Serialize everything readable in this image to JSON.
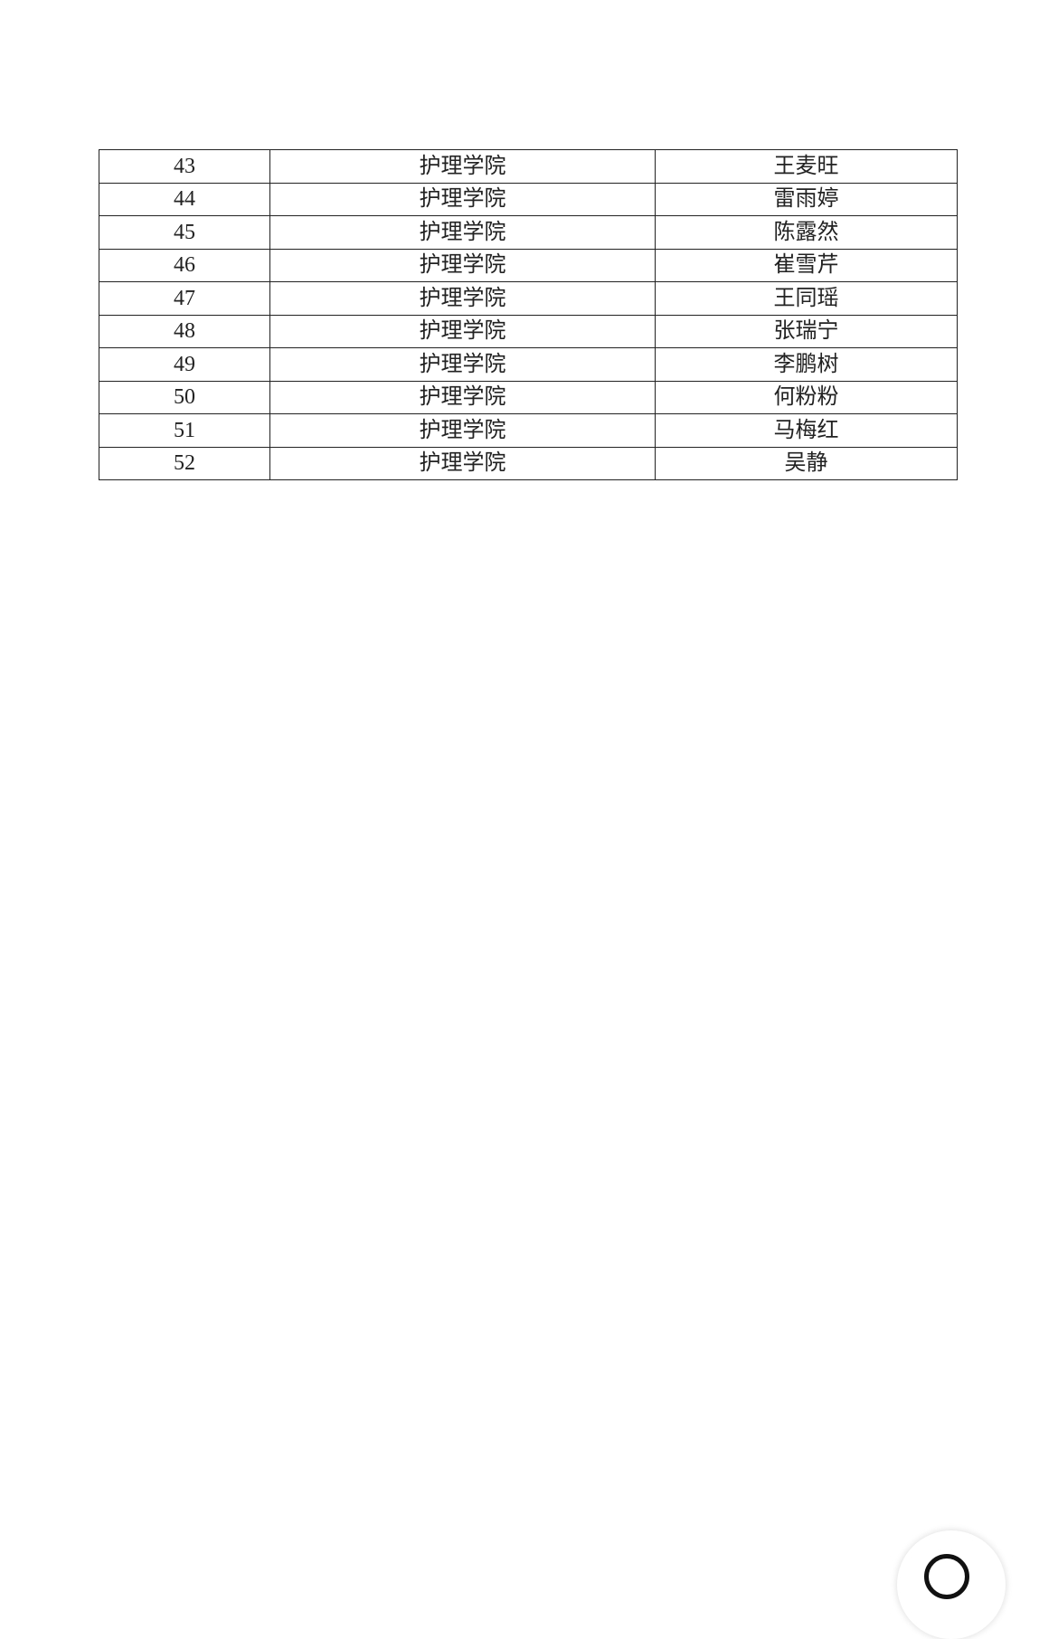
{
  "table": {
    "rows": [
      [
        43,
        "护理学院",
        "王麦旺"
      ],
      [
        44,
        "护理学院",
        "雷雨婷"
      ],
      [
        45,
        "护理学院",
        "陈露然"
      ],
      [
        46,
        "护理学院",
        "崔雪芹"
      ],
      [
        47,
        "护理学院",
        "王同瑶"
      ],
      [
        48,
        "护理学院",
        "张瑞宁"
      ],
      [
        49,
        "护理学院",
        "李鹏树"
      ],
      [
        50,
        "护理学院",
        "何粉粉"
      ],
      [
        51,
        "护理学院",
        "马梅红"
      ],
      [
        52,
        "护理学院",
        "吴静"
      ]
    ]
  }
}
